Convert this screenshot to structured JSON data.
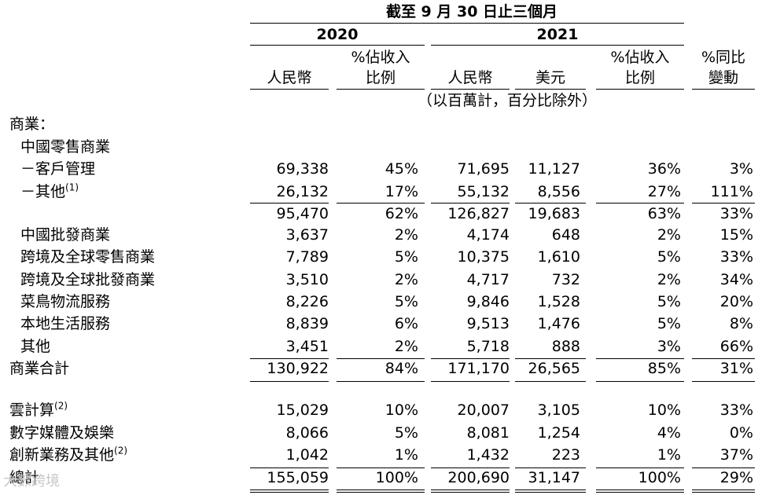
{
  "header": {
    "period": "截至 9 月 30 日止三個月",
    "year_2020": "2020",
    "year_2021": "2021",
    "col_rmb_2020": "人民幣",
    "col_pct_2020_l1": "%佔收入",
    "col_pct_2020_l2": "比例",
    "col_rmb_2021": "人民幣",
    "col_usd_2021": "美元",
    "col_pct_2021_l1": "%佔收入",
    "col_pct_2021_l2": "比例",
    "col_yoy_l1": "%同比",
    "col_yoy_l2": "變動",
    "unit_note": "（以百萬計，百分比除外）"
  },
  "section_commerce": "商業：",
  "subsection_china_retail": "中國零售商業",
  "rows": [
    {
      "label": "－客戶管理",
      "note": "",
      "rmb2020": "69,338",
      "pct2020": "45%",
      "rmb2021": "71,695",
      "usd2021": "11,127",
      "pct2021": "36%",
      "yoy": "3%"
    },
    {
      "label": "－其他",
      "note": "(1)",
      "rmb2020": "26,132",
      "pct2020": "17%",
      "rmb2021": "55,132",
      "usd2021": "8,556",
      "pct2021": "27%",
      "yoy": "111%"
    },
    {
      "label": "",
      "note": "",
      "rmb2020": "95,470",
      "pct2020": "62%",
      "rmb2021": "126,827",
      "usd2021": "19,683",
      "pct2021": "63%",
      "yoy": "33%"
    },
    {
      "label": "中國批發商業",
      "note": "",
      "rmb2020": "3,637",
      "pct2020": "2%",
      "rmb2021": "4,174",
      "usd2021": "648",
      "pct2021": "2%",
      "yoy": "15%"
    },
    {
      "label": "跨境及全球零售商業",
      "note": "",
      "rmb2020": "7,789",
      "pct2020": "5%",
      "rmb2021": "10,375",
      "usd2021": "1,610",
      "pct2021": "5%",
      "yoy": "33%"
    },
    {
      "label": "跨境及全球批發商業",
      "note": "",
      "rmb2020": "3,510",
      "pct2020": "2%",
      "rmb2021": "4,717",
      "usd2021": "732",
      "pct2021": "2%",
      "yoy": "34%"
    },
    {
      "label": "菜鳥物流服務",
      "note": "",
      "rmb2020": "8,226",
      "pct2020": "5%",
      "rmb2021": "9,846",
      "usd2021": "1,528",
      "pct2021": "5%",
      "yoy": "20%"
    },
    {
      "label": "本地生活服務",
      "note": "",
      "rmb2020": "8,839",
      "pct2020": "6%",
      "rmb2021": "9,513",
      "usd2021": "1,476",
      "pct2021": "5%",
      "yoy": "8%"
    },
    {
      "label": "其他",
      "note": "",
      "rmb2020": "3,451",
      "pct2020": "2%",
      "rmb2021": "5,718",
      "usd2021": "888",
      "pct2021": "3%",
      "yoy": "66%"
    },
    {
      "label": "商業合計",
      "note": "",
      "rmb2020": "130,922",
      "pct2020": "84%",
      "rmb2021": "171,170",
      "usd2021": "26,565",
      "pct2021": "85%",
      "yoy": "31%"
    },
    {
      "label": "雲計算",
      "note": "(2)",
      "rmb2020": "15,029",
      "pct2020": "10%",
      "rmb2021": "20,007",
      "usd2021": "3,105",
      "pct2021": "10%",
      "yoy": "33%"
    },
    {
      "label": "數字媒體及娛樂",
      "note": "",
      "rmb2020": "8,066",
      "pct2020": "5%",
      "rmb2021": "8,081",
      "usd2021": "1,254",
      "pct2021": "4%",
      "yoy": "0%"
    },
    {
      "label": "創新業務及其他",
      "note": "(2)",
      "rmb2020": "1,042",
      "pct2020": "1%",
      "rmb2021": "1,432",
      "usd2021": "223",
      "pct2021": "1%",
      "yoy": "37%"
    },
    {
      "label": "總計",
      "note": "",
      "rmb2020": "155,059",
      "pct2020": "100%",
      "rmb2021": "200,690",
      "usd2021": "31,147",
      "pct2021": "100%",
      "yoy": "29%"
    }
  ],
  "watermark": "大數跨境"
}
